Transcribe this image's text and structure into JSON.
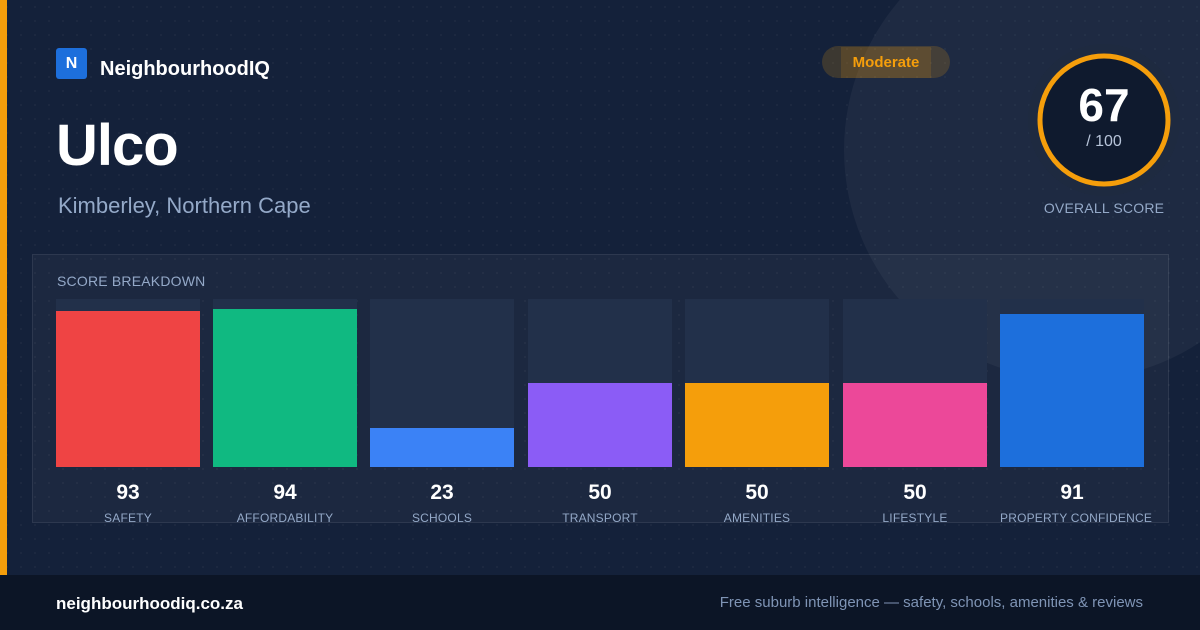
{
  "brand": {
    "logo_letter": "N",
    "name": "NeighbourhoodIQ"
  },
  "suburb": {
    "name": "Ulco",
    "location": "Kimberley, Northern Cape"
  },
  "badge": {
    "label": "Moderate",
    "color": "#f59e0b"
  },
  "overall": {
    "score": "67",
    "max": "/ 100",
    "value": 67,
    "caption": "OVERALL SCORE",
    "ring_color": "#f59e0b"
  },
  "breakdown": {
    "title": "SCORE BREAKDOWN",
    "items": [
      {
        "label": "SAFETY",
        "value": "93",
        "score": 93,
        "color": "#ef4444"
      },
      {
        "label": "AFFORDABILITY",
        "value": "94",
        "score": 94,
        "color": "#10b981"
      },
      {
        "label": "SCHOOLS",
        "value": "23",
        "score": 23,
        "color": "#3b82f6"
      },
      {
        "label": "TRANSPORT",
        "value": "50",
        "score": 50,
        "color": "#8b5cf6"
      },
      {
        "label": "AMENITIES",
        "value": "50",
        "score": 50,
        "color": "#f59e0b"
      },
      {
        "label": "LIFESTYLE",
        "value": "50",
        "score": 50,
        "color": "#ec4899"
      },
      {
        "label": "PROPERTY CONFIDENCE",
        "value": "91",
        "score": 91,
        "color": "#1d6fdc"
      }
    ]
  },
  "footer": {
    "site": "neighbourhoodiq.co.za",
    "tagline": "Free suburb intelligence — safety, schools, amenities & reviews"
  }
}
